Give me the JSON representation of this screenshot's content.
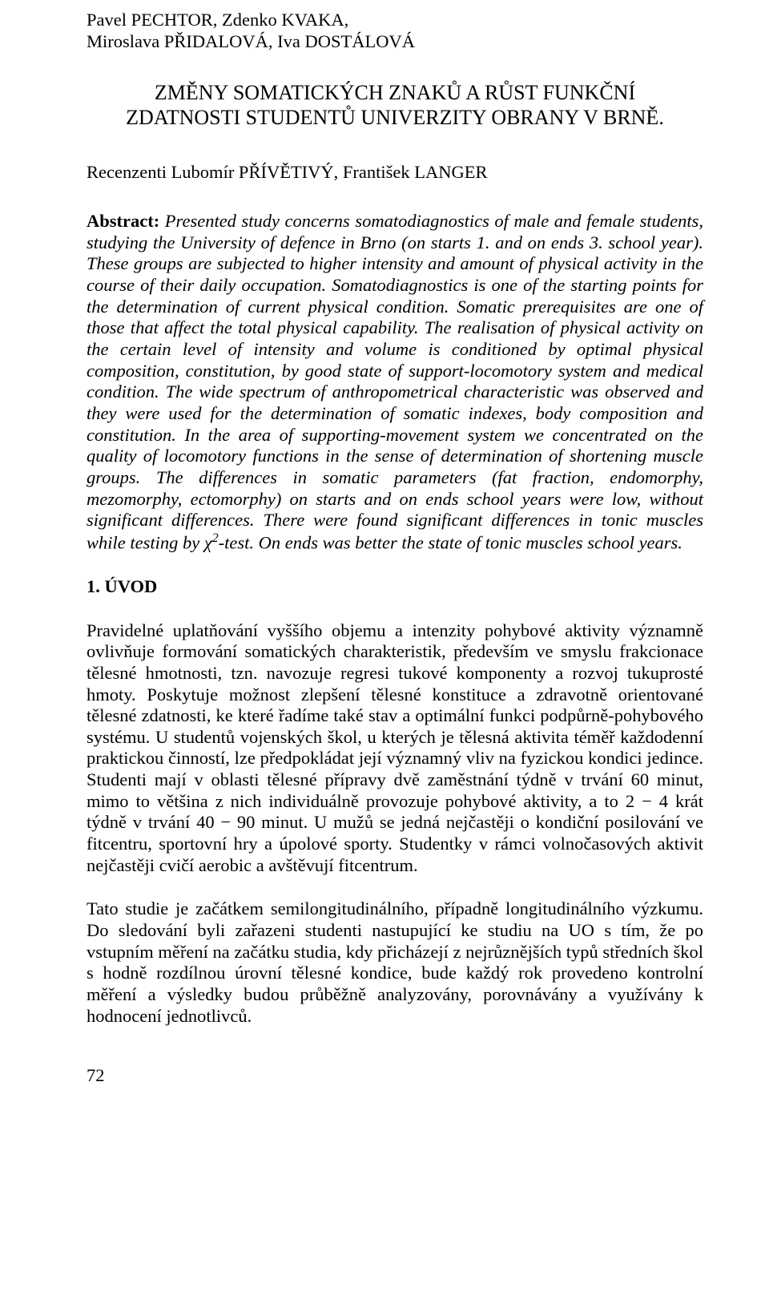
{
  "authors": {
    "line1": "Pavel PECHTOR, Zdenko KVAKA,",
    "line2": "Miroslava PŘIDALOVÁ, Iva DOSTÁLOVÁ"
  },
  "title": {
    "line1": "ZMĚNY SOMATICKÝCH ZNAKŮ A RŮST FUNKČNÍ",
    "line2": "ZDATNOSTI STUDENTŮ UNIVERZITY OBRANY V BRNĚ."
  },
  "reviewers": "Recenzenti Lubomír PŘÍVĚTIVÝ, František LANGER",
  "abstract": {
    "lead": "Abstract:",
    "body_before_chi": " Presented study concerns somatodiagnostics of male and female students, studying the University of defence in Brno (on starts 1. and on ends 3. school year). These groups are subjected to higher intensity and amount of physical activity in the course of their daily occupation. Somatodiagnostics is one of the starting points for the determination of current physical condition. Somatic prerequisites are one of those that affect the total physical capability. The realisation of physical activity on the certain level of intensity and volume is conditioned by optimal physical composition, constitution, by good state of support-locomotory system and medical condition. The wide spectrum of anthropometrical characteristic was observed and they were used for the determination of somatic indexes, body composition and constitution. In the area of supporting-movement system we concentrated on the quality of locomotory functions in the sense of determination of shortening muscle groups.\nThe differences in somatic parameters (fat fraction, endomorphy, mezomorphy, ectomorphy) on starts and on ends school years were low, without significant differences. There were found significant differences in tonic muscles while testing by ",
    "chi": "χ",
    "chi_sup": "2",
    "body_after_chi": "-test. On ends was better the state of tonic muscles school years."
  },
  "section_head": "1.  ÚVOD",
  "para1": "Pravidelné uplatňování vyššího objemu a intenzity pohybové aktivity významně ovlivňuje  formování somatických charakteristik, především ve smyslu frakcionace tělesné hmotnosti, tzn. navozuje regresi tukové komponenty a rozvoj tukuprosté hmoty. Poskytuje možnost zlepšení tělesné konstituce a zdravotně orientované tělesné zdatnosti, ke které řadíme také stav a optimální funkci podpůrně-pohybového systému. U studentů vojenských škol, u kterých je tělesná aktivita téměř každodenní praktickou činností, lze předpokládat její významný vliv na  fyzickou kondici jedince. Studenti mají v oblasti tělesné přípravy dvě zaměstnání týdně v trvání 60 minut, mimo to většina z nich individuálně provozuje pohybové aktivity, a to 2 − 4 krát týdně v trvání 40 − 90 minut. U mužů se jedná nejčastěji o kondiční posilování ve fitcentru, sportovní hry a úpolové sporty. Studentky v rámci volnočasových aktivit nejčastěji cvičí aerobic a avštěvují fitcentrum.",
  "para2": "Tato studie je začátkem semilongitudinálního, případně longitudinálního výzkumu. Do sledování byli zařazeni studenti nastupující ke studiu na UO s tím, že po vstupním měření na začátku studia, kdy přicházejí z nejrůznějších typů středních škol s hodně rozdílnou úrovní tělesné kondice, bude každý rok provedeno kontrolní měření a výsledky budou průběžně analyzovány, porovnávány a využívány k hodnocení jednotlivců.",
  "page_number": "72"
}
